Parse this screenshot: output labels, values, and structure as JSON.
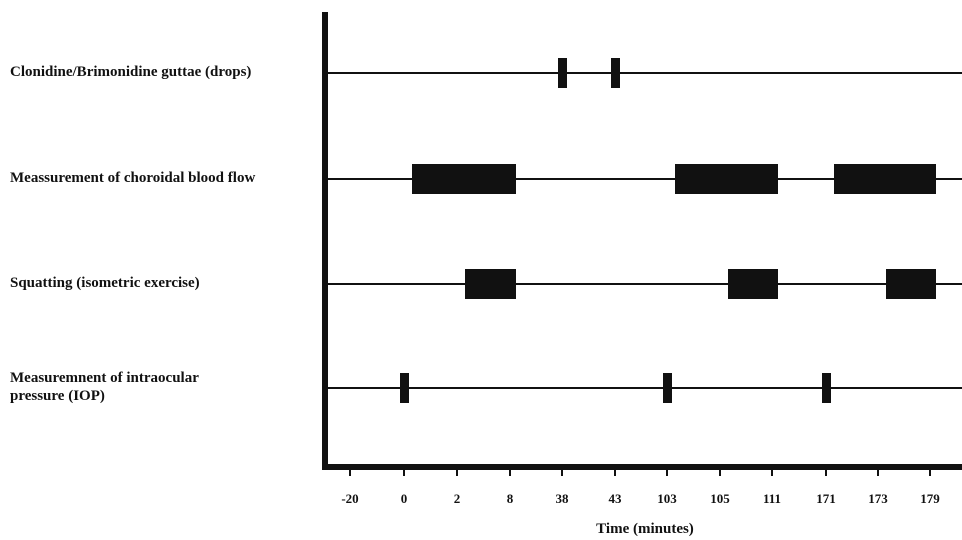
{
  "rows": [
    {
      "label_lines": [
        "Clonidine/Brimonidine guttae (drops)"
      ],
      "blocks": [
        [
          "38",
          "38"
        ],
        [
          "43",
          "43"
        ]
      ]
    },
    {
      "label_lines": [
        "Meassurement of choroidal blood flow"
      ],
      "blocks": [
        [
          "0",
          "8"
        ],
        [
          "103",
          "111"
        ],
        [
          "171",
          "179"
        ]
      ]
    },
    {
      "label_lines": [
        "Squatting (isometric exercise)"
      ],
      "blocks": [
        [
          "2",
          "8"
        ],
        [
          "105",
          "111"
        ],
        [
          "173",
          "179"
        ]
      ]
    },
    {
      "label_lines": [
        "Measuremnent of intraocular",
        "pressure (IOP)"
      ],
      "blocks": [
        [
          "0",
          "0"
        ],
        [
          "103",
          "103"
        ],
        [
          "171",
          "171"
        ]
      ]
    }
  ],
  "axis": {
    "tick_labels": [
      "-20",
      "0",
      "2",
      "8",
      "38",
      "43",
      "103",
      "105",
      "111",
      "171",
      "173",
      "179"
    ],
    "title": "Time (minutes)"
  },
  "colors": {
    "ink": "#111111",
    "background": "#ffffff"
  }
}
